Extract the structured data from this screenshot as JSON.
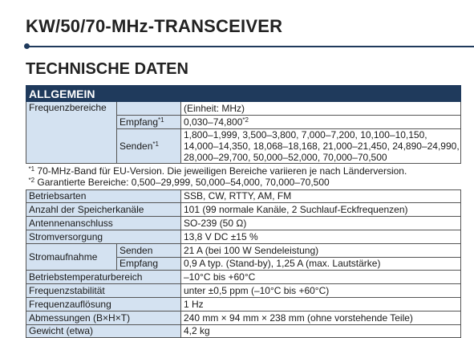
{
  "header": {
    "title": "KW/50/70-MHz-TRANSCEIVER",
    "section": "TECHNISCHE DATEN"
  },
  "table": {
    "heading": "ALLGEMEIN",
    "frequency": {
      "label": "Frequenzbereiche",
      "unit": "(Einheit: MHz)",
      "receive": {
        "label": "Empfang",
        "mark": "*1",
        "value": "0,030–74,800",
        "value_mark": "*2"
      },
      "transmit": {
        "label": "Senden",
        "mark": "*1",
        "lines": [
          "1,800–1,999, 3,500–3,800, 7,000–7,200, 10,100–10,150,",
          "14,000–14,350, 18,068–18,168, 21,000–21,450, 24,890–24,990,",
          "28,000–29,700, 50,000–52,000, 70,000–70,500"
        ]
      }
    },
    "notes": [
      {
        "mark": "*1",
        "text": "70-MHz-Band für EU-Version. Die jeweiligen Bereiche variieren je nach Länderversion."
      },
      {
        "mark": "*2",
        "text": "Garantierte Bereiche: 0,500–29,999, 50,000–54,000, 70,000–70,500"
      }
    ],
    "rows": [
      {
        "label": "Betriebsarten",
        "value": "SSB, CW, RTTY, AM, FM"
      },
      {
        "label": "Anzahl der Speicherkanäle",
        "value": "101 (99 normale Kanäle, 2 Suchlauf-Eckfrequenzen)"
      },
      {
        "label": "Antennenanschluss",
        "value": "SO-239 (50 Ω)"
      },
      {
        "label": "Stromversorgung",
        "value": "13,8 V DC ±15 %"
      },
      {
        "label": "Stromaufnahme",
        "items": [
          {
            "label": "Senden",
            "value": "21 A (bei 100 W Sendeleistung)"
          },
          {
            "label": "Empfang",
            "value": "0,9 A typ. (Stand-by), 1,25 A (max. Lautstärke)"
          }
        ]
      },
      {
        "label": "Betriebstemperaturbereich",
        "value": "–10°C bis +60°C"
      },
      {
        "label": "Frequenzstabilität",
        "value": "unter ±0,5 ppm (–10°C bis +60°C)"
      },
      {
        "label": "Frequenzauflösung",
        "value": "1 Hz"
      },
      {
        "label": "Abmessungen (B×H×T)",
        "value": "240 mm × 94 mm × 238 mm (ohne vorstehende Teile)"
      },
      {
        "label": "Gewicht (etwa)",
        "value": "4,2 kg"
      }
    ]
  }
}
